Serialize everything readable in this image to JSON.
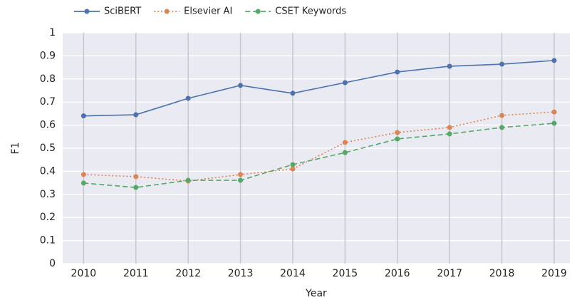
{
  "chart_data": {
    "type": "line",
    "xlabel": "Year",
    "ylabel": "F1",
    "x": [
      2010,
      2011,
      2012,
      2013,
      2014,
      2015,
      2016,
      2017,
      2018,
      2019
    ],
    "xlim": [
      2009.6,
      2019.3
    ],
    "xticks": [
      2010,
      2011,
      2012,
      2013,
      2014,
      2015,
      2016,
      2017,
      2018,
      2019
    ],
    "ylim": [
      0,
      1
    ],
    "yticks": [
      0,
      0.1,
      0.2,
      0.3,
      0.4,
      0.5,
      0.6,
      0.7,
      0.8,
      0.9,
      1
    ],
    "grid": true,
    "legend": "top-left",
    "series": [
      {
        "name": "SciBERT",
        "color": "#4c72b0",
        "dash": "solid",
        "values": [
          0.64,
          0.645,
          0.716,
          0.772,
          0.738,
          0.784,
          0.83,
          0.855,
          0.864,
          0.88
        ]
      },
      {
        "name": "Elsevier AI",
        "color": "#dd8452",
        "dash": "dotted",
        "values": [
          0.386,
          0.377,
          0.358,
          0.386,
          0.41,
          0.525,
          0.568,
          0.59,
          0.642,
          0.657
        ]
      },
      {
        "name": "CSET Keywords",
        "color": "#55a868",
        "dash": "dashed",
        "values": [
          0.349,
          0.33,
          0.361,
          0.361,
          0.429,
          0.481,
          0.54,
          0.562,
          0.59,
          0.608
        ]
      }
    ]
  }
}
